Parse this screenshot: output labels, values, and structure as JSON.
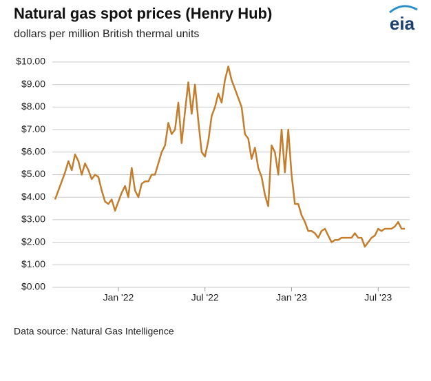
{
  "chart_data": {
    "type": "line",
    "title": "Natural gas spot prices (Henry Hub)",
    "subtitle": "dollars per million British thermal units",
    "logo": "eia",
    "source": "Data source: Natural Gas Intelligence",
    "categories": [
      null,
      null,
      null,
      null,
      null,
      null,
      null,
      null,
      null,
      null,
      null,
      null,
      null,
      null,
      null,
      null,
      null,
      null,
      null,
      "Jan '22",
      null,
      null,
      null,
      null,
      null,
      null,
      null,
      null,
      null,
      null,
      null,
      null,
      null,
      null,
      null,
      null,
      null,
      null,
      null,
      null,
      null,
      null,
      null,
      null,
      null,
      "Jul '22",
      null,
      null,
      null,
      null,
      null,
      null,
      null,
      null,
      null,
      null,
      null,
      null,
      null,
      null,
      null,
      null,
      null,
      null,
      null,
      null,
      null,
      null,
      null,
      null,
      null,
      "Jan '23",
      null,
      null,
      null,
      null,
      null,
      null,
      null,
      null,
      null,
      null,
      null,
      null,
      null,
      null,
      null,
      null,
      null,
      null,
      null,
      null,
      null,
      null,
      null,
      null,
      null,
      "Jul '23",
      null,
      null,
      null,
      null,
      null,
      null,
      null,
      null
    ],
    "series": [
      {
        "name": "Henry Hub",
        "color": "#c47d2c",
        "values": [
          3.9,
          4.3,
          4.7,
          5.1,
          5.6,
          5.2,
          5.9,
          5.6,
          5.0,
          5.5,
          5.2,
          4.8,
          5.0,
          4.9,
          4.3,
          3.8,
          3.7,
          3.9,
          3.4,
          3.8,
          4.2,
          4.5,
          4.0,
          5.3,
          4.3,
          4.0,
          4.6,
          4.7,
          4.7,
          5.0,
          5.0,
          5.5,
          6.0,
          6.3,
          7.3,
          6.8,
          7.0,
          8.2,
          6.4,
          7.8,
          9.1,
          7.7,
          9.0,
          7.4,
          6.0,
          5.8,
          6.5,
          7.6,
          8.0,
          8.6,
          8.2,
          9.2,
          9.8,
          9.2,
          8.8,
          8.4,
          8.0,
          6.8,
          6.6,
          5.7,
          6.2,
          5.3,
          4.9,
          4.1,
          3.6,
          6.3,
          6.0,
          5.0,
          7.0,
          5.1,
          7.0,
          5.0,
          3.7,
          3.7,
          3.2,
          2.9,
          2.5,
          2.5,
          2.4,
          2.2,
          2.5,
          2.6,
          2.3,
          2.0,
          2.1,
          2.1,
          2.2,
          2.2,
          2.2,
          2.2,
          2.4,
          2.2,
          2.2,
          1.8,
          2.0,
          2.2,
          2.3,
          2.6,
          2.5,
          2.6,
          2.6,
          2.6,
          2.7,
          2.9,
          2.6,
          2.6
        ]
      }
    ],
    "ylim": [
      0,
      10
    ],
    "yticks": [
      {
        "value": 0,
        "label": "$0.00"
      },
      {
        "value": 1,
        "label": "$1.00"
      },
      {
        "value": 2,
        "label": "$2.00"
      },
      {
        "value": 3,
        "label": "$3.00"
      },
      {
        "value": 4,
        "label": "$4.00"
      },
      {
        "value": 5,
        "label": "$5.00"
      },
      {
        "value": 6,
        "label": "$6.00"
      },
      {
        "value": 7,
        "label": "$7.00"
      },
      {
        "value": 8,
        "label": "$8.00"
      },
      {
        "value": 9,
        "label": "$9.00"
      },
      {
        "value": 10,
        "label": "$10.00"
      }
    ],
    "grid": true
  }
}
